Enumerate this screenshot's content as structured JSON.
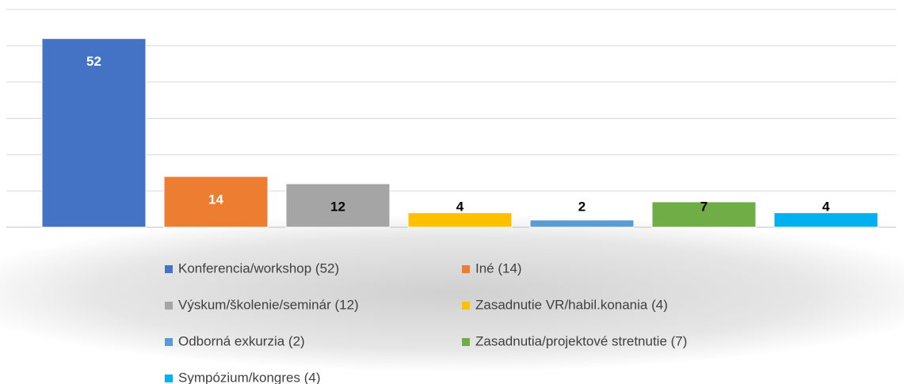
{
  "chart_data": {
    "type": "bar",
    "series": [
      {
        "name": "Konferencia/workshop (52)",
        "color": "#4472c4",
        "values": [
          52
        ]
      },
      {
        "name": "Iné (14)",
        "color": "#ed7d31",
        "values": [
          14
        ]
      },
      {
        "name": "Výskum/školenie/seminár (12)",
        "color": "#a5a5a5",
        "values": [
          12
        ]
      },
      {
        "name": "Zasadnutie VR/habil.konania (4)",
        "color": "#ffc000",
        "values": [
          4
        ]
      },
      {
        "name": "Odborná exkurzia (2)",
        "color": "#5b9bd5",
        "values": [
          2
        ]
      },
      {
        "name": "Zasadnutia/projektové stretnutie (7)",
        "color": "#70ad47",
        "values": [
          7
        ]
      },
      {
        "name": "Sympózium/kongres (4)",
        "color": "#00b0f0",
        "values": [
          4
        ]
      }
    ],
    "ylim": [
      0,
      60
    ],
    "yticks": [
      0,
      10,
      20,
      30,
      40,
      50,
      60
    ],
    "grid": true,
    "legend": "bottom"
  }
}
